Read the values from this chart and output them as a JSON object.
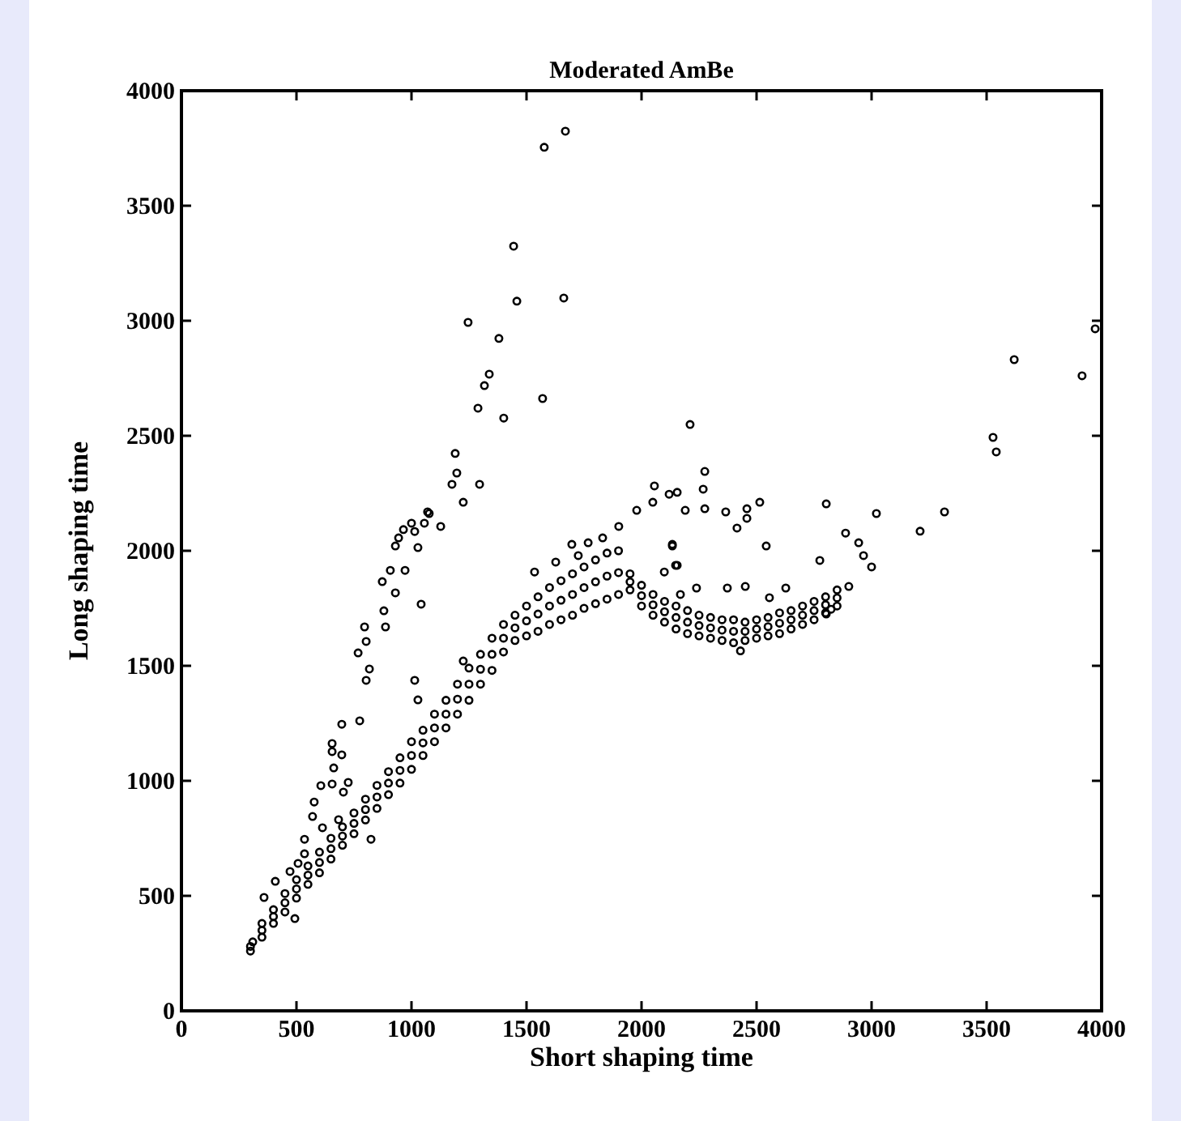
{
  "chart_data": {
    "type": "scatter",
    "title": "Moderated AmBe",
    "xlabel": "Short shaping time",
    "ylabel": "Long shaping time",
    "xlim": [
      0,
      4000
    ],
    "ylim": [
      0,
      4000
    ],
    "xticks": [
      0,
      500,
      1000,
      1500,
      2000,
      2500,
      3000,
      3500,
      4000
    ],
    "yticks": [
      0,
      500,
      1000,
      1500,
      2000,
      2500,
      3000,
      3500,
      4000
    ],
    "grid": false,
    "marker": "circle",
    "color": "#000000",
    "x": [
      300,
      300,
      310,
      350,
      350,
      350,
      400,
      400,
      400,
      450,
      450,
      450,
      500,
      500,
      500,
      550,
      550,
      550,
      600,
      600,
      600,
      650,
      650,
      650,
      700,
      700,
      700,
      750,
      750,
      750,
      800,
      800,
      800,
      850,
      850,
      850,
      900,
      900,
      900,
      950,
      950,
      950,
      1000,
      1000,
      1000,
      1050,
      1050,
      1050,
      1100,
      1100,
      1100,
      1150,
      1150,
      1150,
      1200,
      1200,
      1200,
      1250,
      1250,
      1250,
      1300,
      1300,
      1300,
      1350,
      1350,
      1350,
      1400,
      1400,
      1400,
      1450,
      1450,
      1450,
      1500,
      1500,
      1500,
      1550,
      1550,
      1550,
      1600,
      1600,
      1600,
      1650,
      1650,
      1650,
      1700,
      1700,
      1700,
      1750,
      1750,
      1750,
      1800,
      1800,
      1800,
      1850,
      1850,
      1850,
      1900,
      1900,
      1900,
      1950,
      1950,
      1950,
      2000,
      2000,
      2000,
      2050,
      2050,
      2050,
      2100,
      2100,
      2100,
      2150,
      2150,
      2150,
      2200,
      2200,
      2200,
      2250,
      2250,
      2250,
      2300,
      2300,
      2300,
      2350,
      2350,
      2350,
      2400,
      2400,
      2400,
      2450,
      2450,
      2450,
      2500,
      2500,
      2500,
      2550,
      2550,
      2550,
      2600,
      2600,
      2600,
      2650,
      2650,
      2650,
      2700,
      2700,
      2700,
      2750,
      2750,
      2750,
      2800,
      2800,
      2800,
      2850,
      2850,
      2850,
      2430,
      1577,
      1669,
      1444,
      1458,
      1662,
      1246,
      1380,
      1338,
      1317,
      1289,
      1401,
      1570,
      1190,
      1197,
      1176,
      1296,
      1225,
      2211,
      1077,
      1127,
      1000,
      1056,
      965,
      930,
      1070,
      1014,
      944,
      1028,
      908,
      972,
      873,
      930,
      880,
      1042,
      796,
      887,
      803,
      768,
      817,
      803,
      1014,
      1028,
      697,
      775,
      655,
      655,
      697,
      662,
      725,
      606,
      655,
      704,
      577,
      570,
      613,
      683,
      535,
      535,
      507,
      472,
      408,
      359,
      493,
      824,
      1225,
      1901,
      1979,
      2049,
      2120,
      2155,
      2190,
      2134,
      2099,
      2148,
      2169,
      1697,
      1768,
      1831,
      1535,
      1627,
      1725,
      2275,
      2268,
      2056,
      2514,
      2366,
      2458,
      2458,
      2275,
      2803,
      2887,
      3021,
      2944,
      3211,
      3317,
      2542,
      2415,
      3528,
      3542,
      3620,
      3915,
      3972,
      2134,
      2965,
      3000,
      2775,
      2155,
      2451,
      2373,
      2627,
      2556,
      2239,
      2901,
      2824,
      2803
    ],
    "values": [
      260,
      280,
      300,
      320,
      350,
      380,
      380,
      410,
      440,
      430,
      470,
      510,
      490,
      530,
      570,
      550,
      590,
      630,
      600,
      645,
      690,
      660,
      705,
      750,
      720,
      760,
      800,
      770,
      815,
      860,
      830,
      875,
      920,
      880,
      930,
      980,
      940,
      990,
      1040,
      990,
      1045,
      1100,
      1050,
      1110,
      1170,
      1110,
      1165,
      1220,
      1170,
      1230,
      1290,
      1230,
      1290,
      1350,
      1290,
      1355,
      1420,
      1350,
      1420,
      1490,
      1420,
      1485,
      1550,
      1480,
      1550,
      1620,
      1560,
      1620,
      1680,
      1610,
      1665,
      1720,
      1630,
      1695,
      1760,
      1650,
      1725,
      1800,
      1680,
      1760,
      1840,
      1700,
      1785,
      1870,
      1720,
      1810,
      1900,
      1750,
      1840,
      1930,
      1770,
      1865,
      1960,
      1790,
      1890,
      1990,
      1810,
      1905,
      2000,
      1830,
      1865,
      1900,
      1760,
      1805,
      1850,
      1720,
      1765,
      1810,
      1690,
      1735,
      1780,
      1660,
      1710,
      1760,
      1640,
      1690,
      1740,
      1630,
      1675,
      1720,
      1620,
      1665,
      1710,
      1610,
      1655,
      1700,
      1600,
      1650,
      1700,
      1610,
      1650,
      1690,
      1620,
      1660,
      1700,
      1630,
      1670,
      1710,
      1640,
      1685,
      1730,
      1660,
      1700,
      1740,
      1680,
      1720,
      1760,
      1700,
      1740,
      1780,
      1730,
      1765,
      1800,
      1760,
      1795,
      1830,
      1565,
      3754,
      3824,
      3324,
      3085,
      3099,
      2993,
      2923,
      2768,
      2718,
      2620,
      2577,
      2662,
      2423,
      2338,
      2289,
      2289,
      2211,
      2549,
      2162,
      2106,
      2120,
      2120,
      2092,
      2021,
      2169,
      2084,
      2056,
      2014,
      1915,
      1915,
      1866,
      1817,
      1739,
      1768,
      1669,
      1669,
      1606,
      1556,
      1486,
      1437,
      1437,
      1352,
      1246,
      1261,
      1162,
      1127,
      1113,
      1056,
      993,
      979,
      986,
      951,
      908,
      845,
      796,
      831,
      746,
      683,
      641,
      606,
      563,
      493,
      401,
      746,
      1521,
      2106,
      2176,
      2211,
      2246,
      2254,
      2176,
      2021,
      1908,
      1937,
      1810,
      2028,
      2035,
      2056,
      1908,
      1951,
      1979,
      2345,
      2268,
      2282,
      2211,
      2169,
      2183,
      2141,
      2183,
      2204,
      2077,
      2162,
      2035,
      2085,
      2169,
      2021,
      2099,
      2493,
      2430,
      2831,
      2761,
      2965,
      2028,
      1979,
      1930,
      1958,
      1937,
      1845,
      1838,
      1838,
      1796,
      1838,
      1845,
      1746,
      1725
    ]
  }
}
